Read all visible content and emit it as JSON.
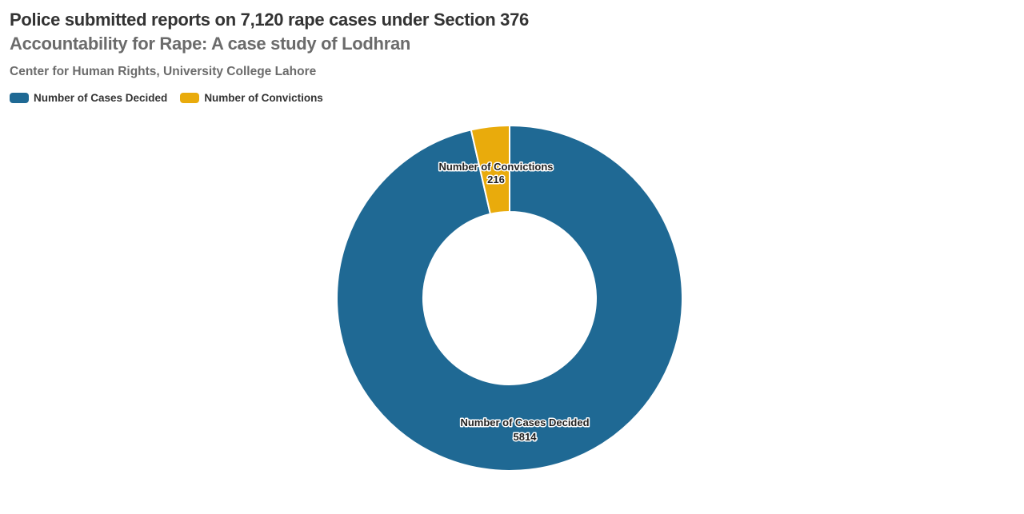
{
  "header": {
    "title": "Police submitted reports on 7,120 rape cases under Section 376",
    "subtitle": "Accountability for Rape: A case study of Lodhran",
    "source": "Center for Human Rights, University College Lahore"
  },
  "legend": [
    {
      "label": "Number of Cases Decided",
      "color": "#1f6994"
    },
    {
      "label": "Number of Convictions",
      "color": "#e9ab0c"
    }
  ],
  "chart_data": {
    "type": "pie",
    "variant": "donut",
    "title": "Police submitted reports on 7,120 rape cases under Section 376",
    "subtitle": "Accountability for Rape: A case study of Lodhran",
    "source": "Center for Human Rights, University College Lahore",
    "categories": [
      "Number of Cases Decided",
      "Number of Convictions"
    ],
    "values": [
      5814,
      216
    ],
    "colors": [
      "#1f6994",
      "#e9ab0c"
    ],
    "data_labels": [
      {
        "label": "Number of Cases Decided",
        "value": "5814"
      },
      {
        "label": "Number of Convictions",
        "value": "216"
      }
    ],
    "legend_position": "top-left",
    "inner_radius_ratio": 0.5
  }
}
